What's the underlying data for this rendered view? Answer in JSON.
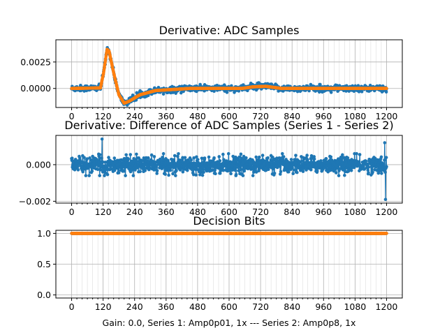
{
  "xlabel": "Gain: 0.0, Series 1: Amp0p01, 1x --- Series 2: Amp0p8, 1x",
  "chart_data": [
    {
      "type": "scatter",
      "title": "Derivative: ADC Samples",
      "xlim": [
        -60,
        1260
      ],
      "ylim": [
        -0.0018,
        0.0046
      ],
      "xticks": [
        0,
        120,
        240,
        360,
        480,
        600,
        720,
        840,
        960,
        1080,
        1200
      ],
      "xtick_labels": [
        "0",
        "120",
        "240",
        "360",
        "480",
        "600",
        "720",
        "840",
        "960",
        "1080",
        "1200"
      ],
      "yticks": [
        0,
        0.0025
      ],
      "ytick_labels": [
        "0.0000",
        "0.0025"
      ],
      "x_minor_step": 20,
      "grid": true,
      "series": [
        {
          "name": "Series 1",
          "color": "#1f77b4",
          "kind": "noisy",
          "noise": 0.00025,
          "n": 1200,
          "profile": [
            [
              0,
              0.0
            ],
            [
              110,
              5e-05
            ],
            [
              122,
              0.0015
            ],
            [
              135,
              0.0037
            ],
            [
              143,
              0.0035
            ],
            [
              160,
              0.0015
            ],
            [
              180,
              -0.0006
            ],
            [
              200,
              -0.0014
            ],
            [
              220,
              -0.0012
            ],
            [
              260,
              -0.0006
            ],
            [
              320,
              -0.0002
            ],
            [
              450,
              0.0
            ],
            [
              650,
              0.0
            ],
            [
              690,
              0.00015
            ],
            [
              740,
              0.0002
            ],
            [
              800,
              0.0
            ],
            [
              1200,
              0.0
            ]
          ]
        },
        {
          "name": "Series 2",
          "color": "#ff7f0e",
          "kind": "smooth",
          "n": 1200,
          "profile": [
            [
              0,
              0.0
            ],
            [
              110,
              5e-05
            ],
            [
              122,
              0.0015
            ],
            [
              135,
              0.0037
            ],
            [
              143,
              0.0035
            ],
            [
              160,
              0.0015
            ],
            [
              180,
              -0.0006
            ],
            [
              200,
              -0.0014
            ],
            [
              220,
              -0.0012
            ],
            [
              260,
              -0.0006
            ],
            [
              320,
              -0.0002
            ],
            [
              450,
              0.0
            ],
            [
              650,
              0.0
            ],
            [
              690,
              0.00015
            ],
            [
              740,
              0.0002
            ],
            [
              800,
              0.0
            ],
            [
              1200,
              0.0
            ]
          ]
        }
      ]
    },
    {
      "type": "scatter",
      "title": "Derivative: Difference of ADC Samples (Series 1 - Series 2)",
      "xlim": [
        -60,
        1260
      ],
      "ylim": [
        -0.0021,
        0.0016
      ],
      "xticks": [
        0,
        120,
        240,
        360,
        480,
        600,
        720,
        840,
        960,
        1080,
        1200
      ],
      "xtick_labels": [
        "0",
        "120",
        "240",
        "360",
        "480",
        "600",
        "720",
        "840",
        "960",
        "1080",
        "1200"
      ],
      "yticks": [
        -0.002,
        0
      ],
      "ytick_labels": [
        "−0.002",
        "0.000"
      ],
      "x_minor_step": 20,
      "grid": true,
      "series": [
        {
          "name": "Difference",
          "color": "#1f77b4",
          "kind": "noisy",
          "noise": 0.0004,
          "n": 1200,
          "profile": [
            [
              0,
              0.0
            ],
            [
              1200,
              0.0
            ]
          ],
          "spikes": [
            [
              116,
              0.0014
            ],
            [
              119,
              -0.0004
            ],
            [
              125,
              -0.0006
            ],
            [
              1193,
              0.0012
            ],
            [
              1196,
              -0.0019
            ]
          ]
        }
      ]
    },
    {
      "type": "scatter",
      "title": "Decision Bits",
      "xlim": [
        -60,
        1260
      ],
      "ylim": [
        -0.05,
        1.05
      ],
      "xticks": [
        0,
        120,
        240,
        360,
        480,
        600,
        720,
        840,
        960,
        1080,
        1200
      ],
      "xtick_labels": [
        "0",
        "120",
        "240",
        "360",
        "480",
        "600",
        "720",
        "840",
        "960",
        "1080",
        "1200"
      ],
      "yticks": [
        0,
        0.5,
        1
      ],
      "ytick_labels": [
        "0.0",
        "0.5",
        "1.0"
      ],
      "x_minor_step": 20,
      "grid": true,
      "series": [
        {
          "name": "Series 1",
          "color": "#1f77b4",
          "kind": "constant",
          "value": 1.0,
          "n": 1200
        },
        {
          "name": "Series 2",
          "color": "#ff7f0e",
          "kind": "constant",
          "value": 1.0,
          "n": 1200
        }
      ]
    }
  ]
}
